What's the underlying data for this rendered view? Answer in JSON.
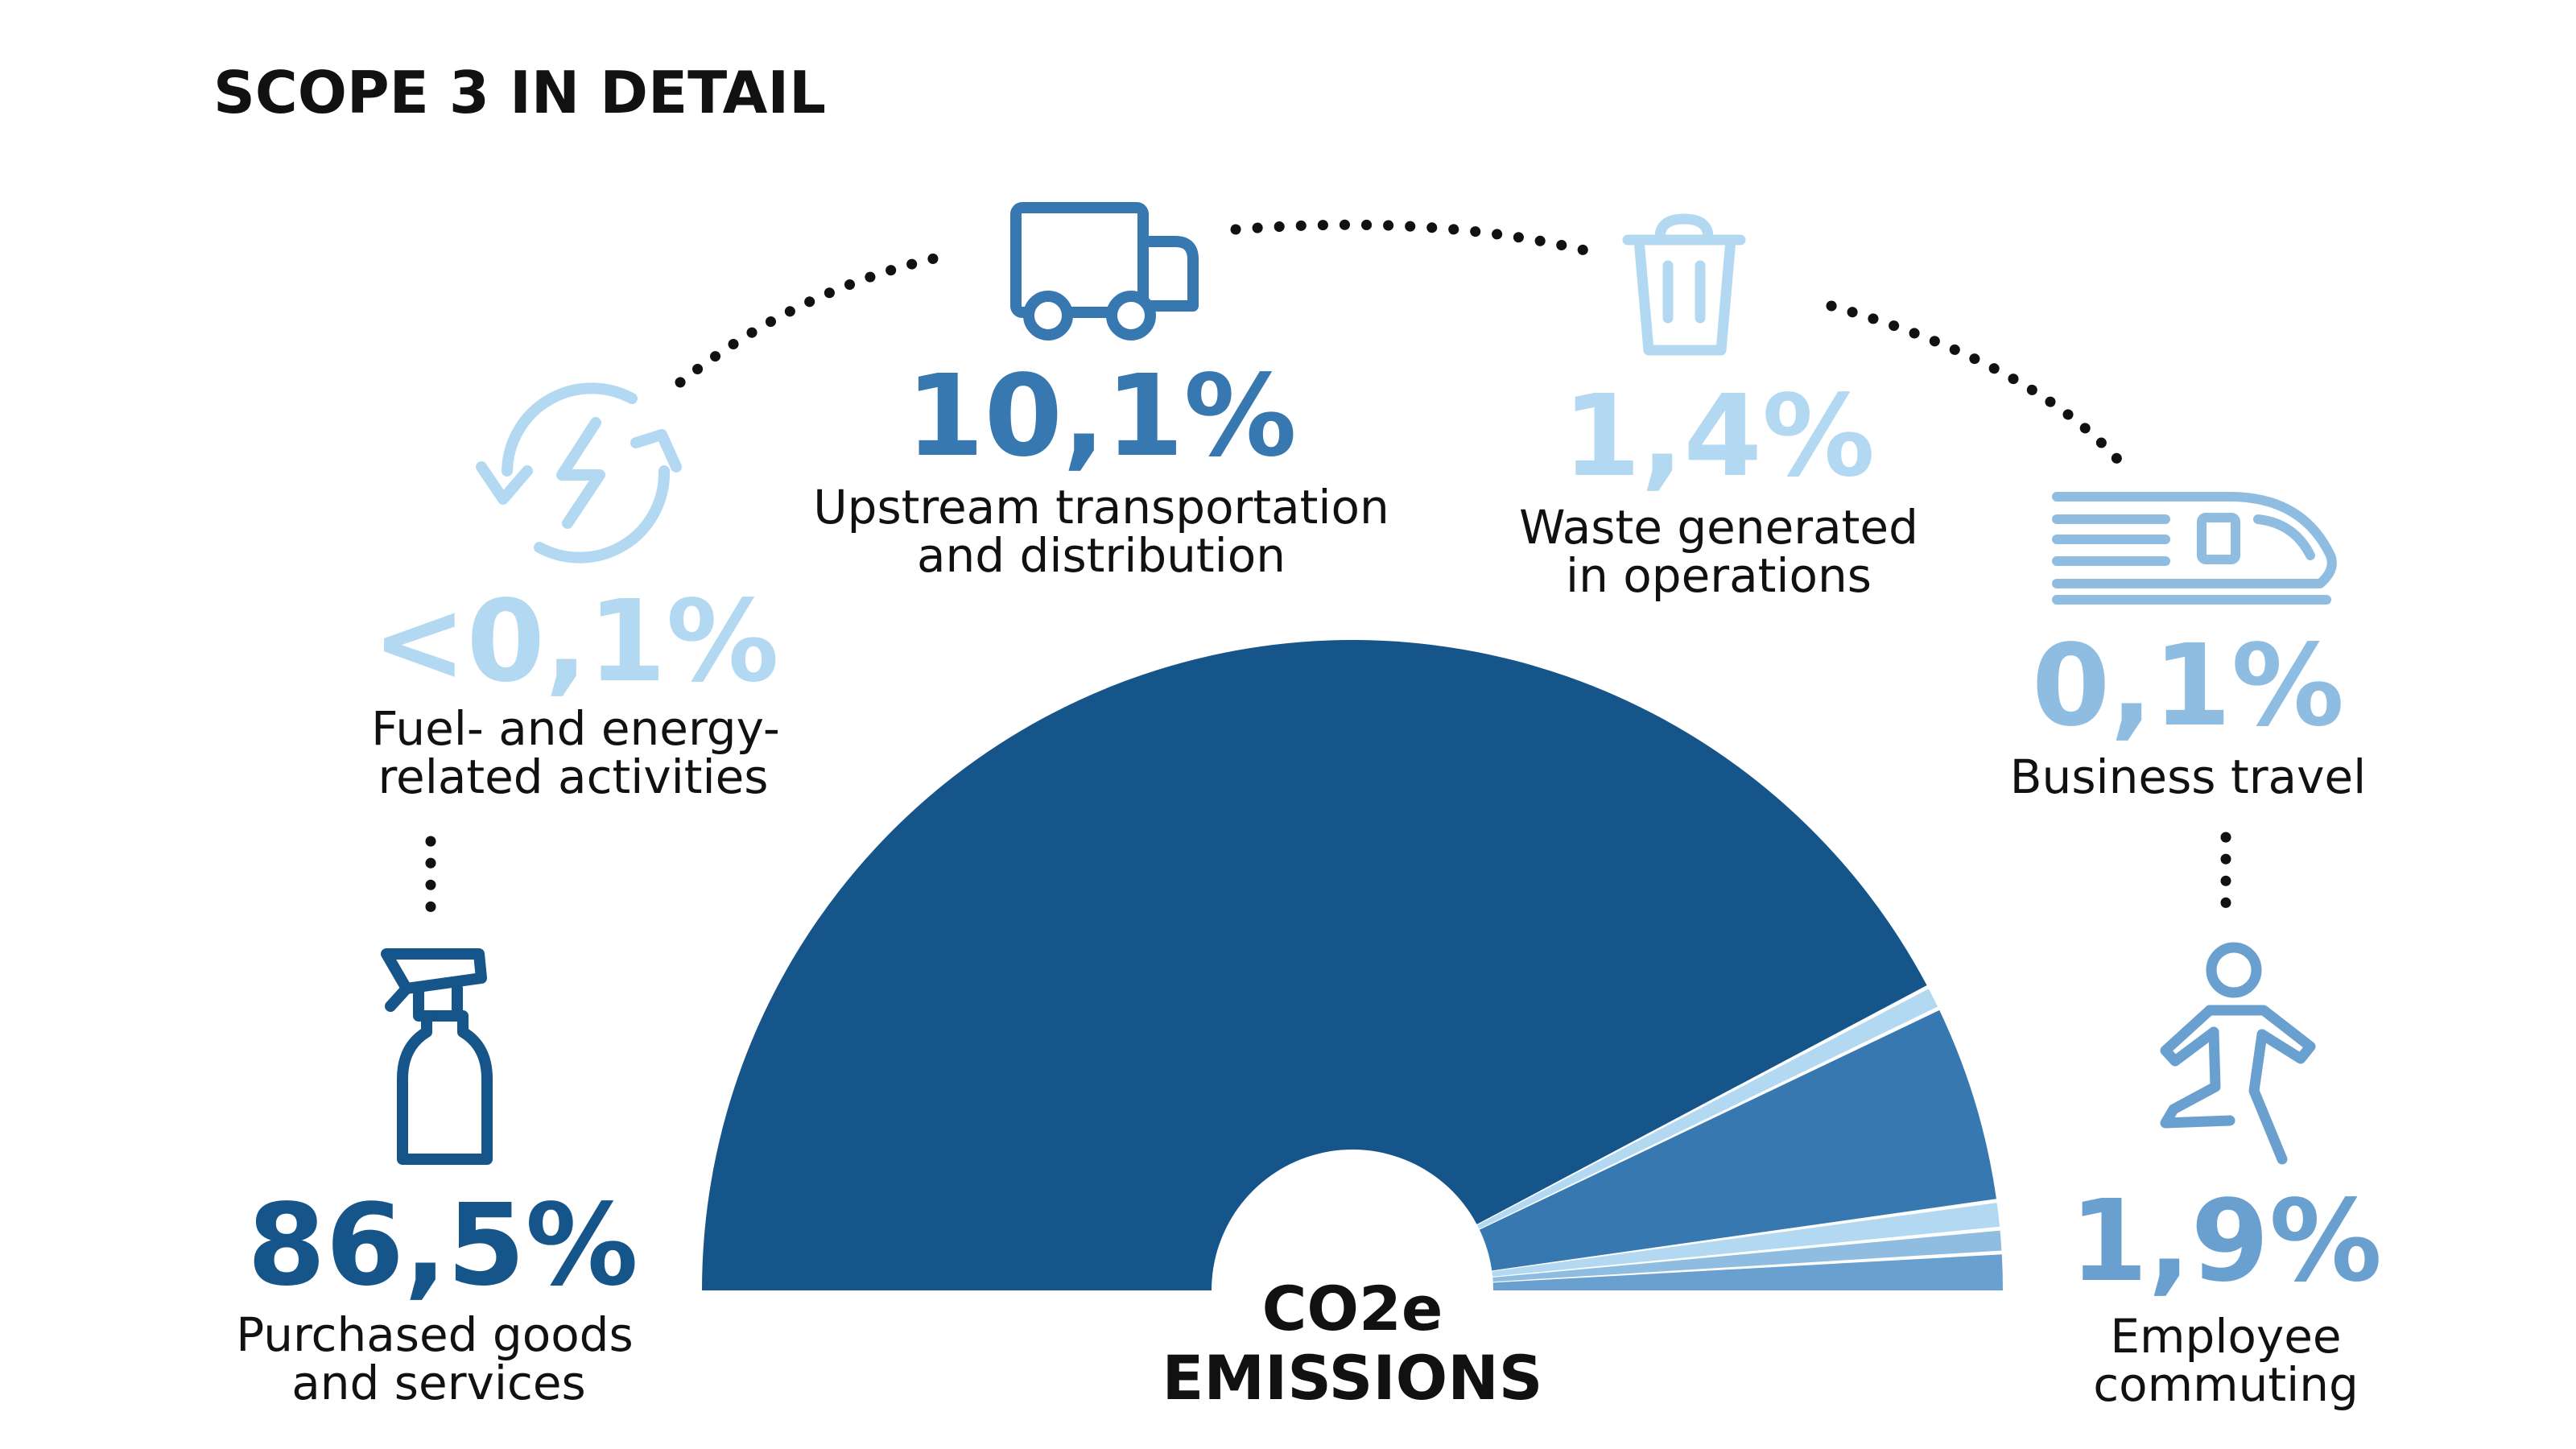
{
  "title": "SCOPE 3 IN DETAIL",
  "center": {
    "line1": "CO2e",
    "line2": "EMISSIONS"
  },
  "colors": {
    "dark": "#15558a",
    "mid": "#3878b0",
    "pale": "#b3d9f2",
    "light": "#8ebde1",
    "steel": "#6aa0cf",
    "text": "#111111",
    "dots": "#111111"
  },
  "categories": [
    {
      "key": "purchased",
      "value": "86,5%",
      "label1": "Purchased goods",
      "label2": "and services",
      "icon": "spray-bottle-icon"
    },
    {
      "key": "fuel",
      "value": "<0,1%",
      "label1": "Fuel- and energy-",
      "label2": "related activities",
      "icon": "energy-cycle-icon"
    },
    {
      "key": "upstream",
      "value": "10,1%",
      "label1": "Upstream transportation",
      "label2": "and distribution",
      "icon": "truck-icon"
    },
    {
      "key": "waste",
      "value": "1,4%",
      "label1": "Waste generated",
      "label2": "in operations",
      "icon": "trash-bin-icon"
    },
    {
      "key": "travel",
      "value": "0,1%",
      "label1": "Business travel",
      "label2": "",
      "icon": "train-icon"
    },
    {
      "key": "commute",
      "value": "1,9%",
      "label1": "Employee",
      "label2": "commuting",
      "icon": "walking-person-icon"
    }
  ],
  "chart_data": {
    "type": "pie",
    "style": "half-donut",
    "title": "SCOPE 3 IN DETAIL",
    "slices": [
      {
        "label": "Purchased goods and services",
        "value": 86.5,
        "color": "#15558a"
      },
      {
        "label": "Fuel- and energy-related activities",
        "value": 0.05,
        "color": "#b3d9f2"
      },
      {
        "label": "Upstream transportation and distribution",
        "value": 10.1,
        "color": "#3878b0"
      },
      {
        "label": "Waste generated in operations",
        "value": 1.4,
        "color": "#b3d9f2"
      },
      {
        "label": "Business travel",
        "value": 0.1,
        "color": "#8ebde1"
      },
      {
        "label": "Employee commuting",
        "value": 1.9,
        "color": "#6aa0cf"
      }
    ]
  }
}
